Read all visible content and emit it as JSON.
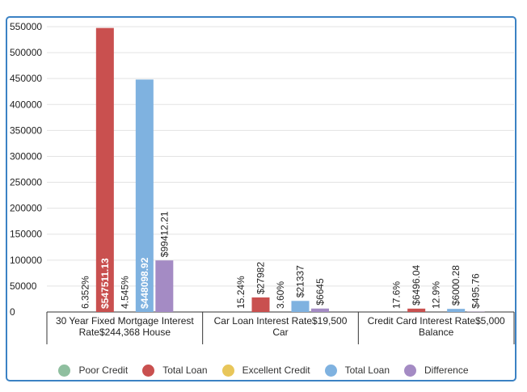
{
  "chart_data": {
    "type": "bar",
    "title": "",
    "xlabel": "",
    "ylabel": "",
    "ylim": [
      0,
      550000
    ],
    "yticks": [
      0,
      50000,
      100000,
      150000,
      200000,
      250000,
      300000,
      350000,
      400000,
      450000,
      500000,
      550000
    ],
    "grid": true,
    "legend_position": "bottom",
    "categories": [
      [
        "30 Year Fixed Mortgage Interest",
        "Rate$244,368 House"
      ],
      [
        "Car Loan Interest Rate$19,500",
        "Car"
      ],
      [
        "Credit Card Interest Rate$5,000",
        "Balance"
      ]
    ],
    "series": [
      {
        "name": "Poor Credit",
        "color": "#8fbf9f",
        "values": [
          6.352,
          15.24,
          17.6
        ],
        "labels": [
          "6.352%",
          "15.24%",
          "17.6%"
        ]
      },
      {
        "name": "Total Loan",
        "color": "#c9504f",
        "values": [
          547511.13,
          27982,
          6496.04
        ],
        "labels": [
          "$547511.13",
          "$27982",
          "$6496.04"
        ]
      },
      {
        "name": "Excellent Credit",
        "color": "#e8c65a",
        "values": [
          4.545,
          3.6,
          12.9
        ],
        "labels": [
          "4.545%",
          "3.60%",
          "12.9%"
        ]
      },
      {
        "name": "Total Loan",
        "color": "#7fb2e0",
        "values": [
          448098.92,
          21337,
          6000.28
        ],
        "labels": [
          "$448098.92",
          "$21337",
          "$6000.28"
        ]
      },
      {
        "name": "Difference",
        "color": "#a48bc4",
        "values": [
          99412.21,
          6645,
          495.76
        ],
        "labels": [
          "$99412.21",
          "$6645",
          "$495.76"
        ]
      }
    ]
  }
}
